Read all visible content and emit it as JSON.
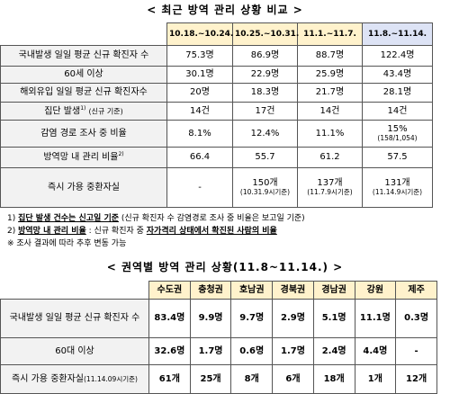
{
  "section1": {
    "title": "< 최근 방역 관리 상황 비교 >",
    "columns": [
      "10.18.~10.24.",
      "10.25.~10.31.",
      "11.1.~11.7.",
      "11.8.~11.14."
    ],
    "rows": [
      {
        "label": "국내발생 일일 평균 신규 확진자 수",
        "cells": [
          [
            "75.3명"
          ],
          [
            "86.9명"
          ],
          [
            "88.7명"
          ],
          [
            "122.4명"
          ]
        ]
      },
      {
        "label": "60세 이상",
        "cells": [
          [
            "30.1명"
          ],
          [
            "22.9명"
          ],
          [
            "25.9명"
          ],
          [
            "43.4명"
          ]
        ]
      },
      {
        "label": "해외유입 일일 평균 신규 확진자수",
        "cells": [
          [
            "20명"
          ],
          [
            "18.3명"
          ],
          [
            "21.7명"
          ],
          [
            "28.1명"
          ]
        ]
      },
      {
        "label": "집단 발생",
        "sup": "1)",
        "small": "(신규 기준)",
        "cells": [
          [
            "14건"
          ],
          [
            "17건"
          ],
          [
            "14건"
          ],
          [
            "14건"
          ]
        ]
      },
      {
        "label": "감염 경로 조사 중 비율",
        "cells": [
          [
            "8.1%"
          ],
          [
            "12.4%"
          ],
          [
            "11.1%"
          ],
          [
            "15%",
            "(158/1,054)"
          ]
        ]
      },
      {
        "label": "방역망 내 관리 비율",
        "sup": "2)",
        "cells": [
          [
            "66.4"
          ],
          [
            "55.7"
          ],
          [
            "61.2"
          ],
          [
            "57.5"
          ]
        ]
      },
      {
        "label": "즉시 가용 중환자실",
        "cells": [
          [
            "-"
          ],
          [
            "150개",
            "(10.31.9시기준)"
          ],
          [
            "137개",
            "(11.7.9시기준)"
          ],
          [
            "131개",
            "(11.14.9시기준)"
          ]
        ]
      }
    ],
    "notes": [
      [
        "1) ",
        "집단 발생 건수는 신고일 기준",
        " (신규 확진자 수 감염경로 조사 중 비율은 보고일 기준)"
      ],
      [
        "2) ",
        "방역망 내 관리 비율",
        " : 신규 확진자 중 ",
        "자가격리 상태에서 확진된 사람의 비율"
      ],
      [
        "※ 조사 결과에 따라 추후 변동 가능"
      ]
    ]
  },
  "section2": {
    "title": "< 권역별 방역 관리 상황(11.8~11.14.) >",
    "columns": [
      "수도권",
      "충청권",
      "호남권",
      "경북권",
      "경남권",
      "강원",
      "제주"
    ],
    "rows": [
      {
        "label": "국내발생 일일 평균 신규 확진자 수",
        "cells": [
          "83.4명",
          "9.9명",
          "9.7명",
          "2.9명",
          "5.1명",
          "11.1명",
          "0.3명"
        ]
      },
      {
        "label": "60대 이상",
        "cells": [
          "32.6명",
          "1.7명",
          "0.6명",
          "1.7명",
          "2.4명",
          "4.4명",
          "-"
        ]
      },
      {
        "label": "즉시 가용 중환자실",
        "small": "(11.14.09시기준)",
        "cells": [
          "61개",
          "25개",
          "8개",
          "6개",
          "18개",
          "1개",
          "12개"
        ]
      }
    ]
  }
}
